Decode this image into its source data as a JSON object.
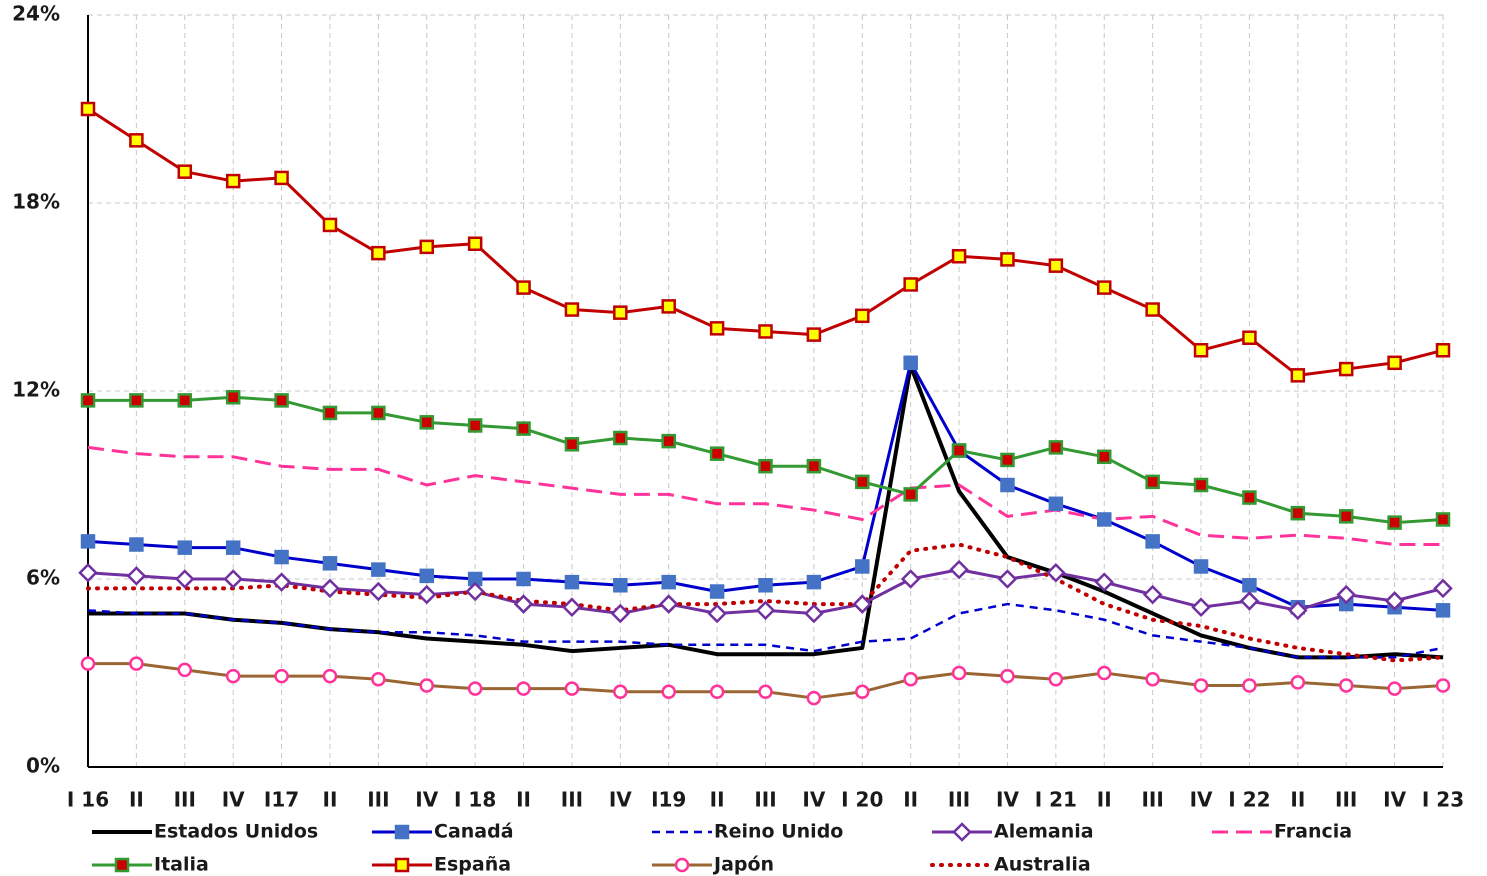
{
  "chart_data": {
    "type": "line",
    "categories": [
      "I 16",
      "II",
      "III",
      "IV",
      "I17",
      "II",
      "III",
      "IV",
      "I 18",
      "II",
      "III",
      "IV",
      "I19",
      "II",
      "III",
      "IV",
      "I 20",
      "II",
      "III",
      "IV",
      "I 21",
      "II",
      "III",
      "IV",
      "I 22",
      "II",
      "III",
      "IV",
      "I 23"
    ],
    "ylim": [
      0,
      24
    ],
    "yticks": [
      {
        "value": 0,
        "label": "0%"
      },
      {
        "value": 6,
        "label": "6%"
      },
      {
        "value": 12,
        "label": "12%"
      },
      {
        "value": 18,
        "label": "18%"
      },
      {
        "value": 24,
        "label": "24%"
      }
    ],
    "grid": true,
    "series": [
      {
        "name": "Estados Unidos",
        "color": "#000000",
        "dash": "solid",
        "marker": "none",
        "width": 4,
        "values": [
          4.9,
          4.9,
          4.9,
          4.7,
          4.6,
          4.4,
          4.3,
          4.1,
          4.0,
          3.9,
          3.7,
          3.8,
          3.9,
          3.6,
          3.6,
          3.6,
          3.8,
          12.8,
          8.8,
          6.7,
          6.2,
          5.6,
          4.9,
          4.2,
          3.8,
          3.5,
          3.5,
          3.6,
          3.5
        ]
      },
      {
        "name": "Canadá",
        "color": "#0000cc",
        "dash": "solid",
        "marker": "square",
        "marker_fill": "#4472c4",
        "marker_stroke": "#4472c4",
        "width": 3,
        "values": [
          7.2,
          7.1,
          7.0,
          7.0,
          6.7,
          6.5,
          6.3,
          6.1,
          6.0,
          6.0,
          5.9,
          5.8,
          5.9,
          5.6,
          5.8,
          5.9,
          6.4,
          12.9,
          10.1,
          9.0,
          8.4,
          7.9,
          7.2,
          6.4,
          5.8,
          5.1,
          5.2,
          5.1,
          5.0
        ]
      },
      {
        "name": "Reino Unido",
        "color": "#0000cc",
        "dash": "dashed",
        "marker": "none",
        "width": 2.5,
        "values": [
          5.0,
          4.9,
          4.9,
          4.7,
          4.6,
          4.4,
          4.3,
          4.3,
          4.2,
          4.0,
          4.0,
          4.0,
          3.9,
          3.9,
          3.9,
          3.7,
          4.0,
          4.1,
          4.9,
          5.2,
          5.0,
          4.7,
          4.2,
          4.0,
          3.8,
          3.5,
          3.5,
          3.5,
          3.8
        ]
      },
      {
        "name": "Alemania",
        "color": "#7030a0",
        "dash": "solid",
        "marker": "diamond",
        "marker_fill": "#ffffff",
        "marker_stroke": "#7030a0",
        "width": 3,
        "values": [
          6.2,
          6.1,
          6.0,
          6.0,
          5.9,
          5.7,
          5.6,
          5.5,
          5.6,
          5.2,
          5.1,
          4.9,
          5.2,
          4.9,
          5.0,
          4.9,
          5.2,
          6.0,
          6.3,
          6.0,
          6.2,
          5.9,
          5.5,
          5.1,
          5.3,
          5.0,
          5.5,
          5.3,
          5.7
        ]
      },
      {
        "name": "Francia",
        "color": "#ff3399",
        "dash": "longdash",
        "marker": "none",
        "width": 3,
        "values": [
          10.2,
          10.0,
          9.9,
          9.9,
          9.6,
          9.5,
          9.5,
          9.0,
          9.3,
          9.1,
          8.9,
          8.7,
          8.7,
          8.4,
          8.4,
          8.2,
          7.9,
          8.9,
          9.0,
          8.0,
          8.2,
          7.9,
          8.0,
          7.4,
          7.3,
          7.4,
          7.3,
          7.1,
          7.1
        ]
      },
      {
        "name": "Italia",
        "color": "#339933",
        "dash": "solid",
        "marker": "square",
        "marker_fill": "#cc0000",
        "marker_stroke": "#339933",
        "width": 3,
        "values": [
          11.7,
          11.7,
          11.7,
          11.8,
          11.7,
          11.3,
          11.3,
          11.0,
          10.9,
          10.8,
          10.3,
          10.5,
          10.4,
          10.0,
          9.6,
          9.6,
          9.1,
          8.7,
          10.1,
          9.8,
          10.2,
          9.9,
          9.1,
          9.0,
          8.6,
          8.1,
          8.0,
          7.8,
          7.9
        ]
      },
      {
        "name": "España",
        "color": "#c00000",
        "dash": "solid",
        "marker": "square",
        "marker_fill": "#ffff00",
        "marker_stroke": "#c00000",
        "width": 3,
        "values": [
          21.0,
          20.0,
          19.0,
          18.7,
          18.8,
          17.3,
          16.4,
          16.6,
          16.7,
          15.3,
          14.6,
          14.5,
          14.7,
          14.0,
          13.9,
          13.8,
          14.4,
          15.4,
          16.3,
          16.2,
          16.0,
          15.3,
          14.6,
          13.3,
          13.7,
          12.5,
          12.7,
          12.9,
          13.3
        ]
      },
      {
        "name": "Japón",
        "color": "#996633",
        "dash": "solid",
        "marker": "circle",
        "marker_fill": "#ffffff",
        "marker_stroke": "#ff3399",
        "width": 3,
        "values": [
          3.3,
          3.3,
          3.1,
          2.9,
          2.9,
          2.9,
          2.8,
          2.6,
          2.5,
          2.5,
          2.5,
          2.4,
          2.4,
          2.4,
          2.4,
          2.2,
          2.4,
          2.8,
          3.0,
          2.9,
          2.8,
          3.0,
          2.8,
          2.6,
          2.6,
          2.7,
          2.6,
          2.5,
          2.6
        ]
      },
      {
        "name": "Australia",
        "color": "#c00000",
        "dash": "dotted",
        "marker": "none",
        "width": 4,
        "values": [
          5.7,
          5.7,
          5.7,
          5.7,
          5.8,
          5.6,
          5.5,
          5.4,
          5.6,
          5.3,
          5.2,
          5.0,
          5.2,
          5.2,
          5.3,
          5.2,
          5.2,
          6.9,
          7.1,
          6.7,
          6.0,
          5.2,
          4.7,
          4.5,
          4.1,
          3.8,
          3.6,
          3.4,
          3.5
        ]
      }
    ]
  }
}
